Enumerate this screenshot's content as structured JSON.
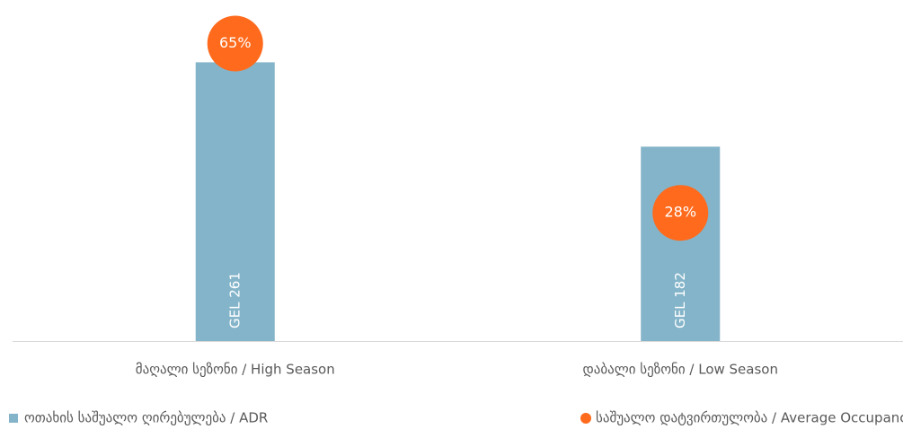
{
  "chart_data": {
    "type": "bar",
    "categories": [
      "მაღალი სეზონი / High Season",
      "დაბალი სეზონი / Low Season"
    ],
    "series": [
      {
        "name": "ოთახის საშუალო ღირებულება / ADR",
        "color": "#84b4c9",
        "values": [
          261,
          182
        ],
        "value_labels": [
          "GEL 261",
          "GEL 182"
        ]
      },
      {
        "name": "საშუალო დატვირთულობა / Average Occupancy",
        "color": "#ff6a1c",
        "type": "scatter",
        "axis": "y2",
        "values": [
          65,
          28
        ],
        "value_labels": [
          "65%",
          "28%"
        ]
      }
    ],
    "ylim": [
      0,
      300
    ],
    "y2lim": [
      0,
      70
    ],
    "legend": "bottom"
  }
}
